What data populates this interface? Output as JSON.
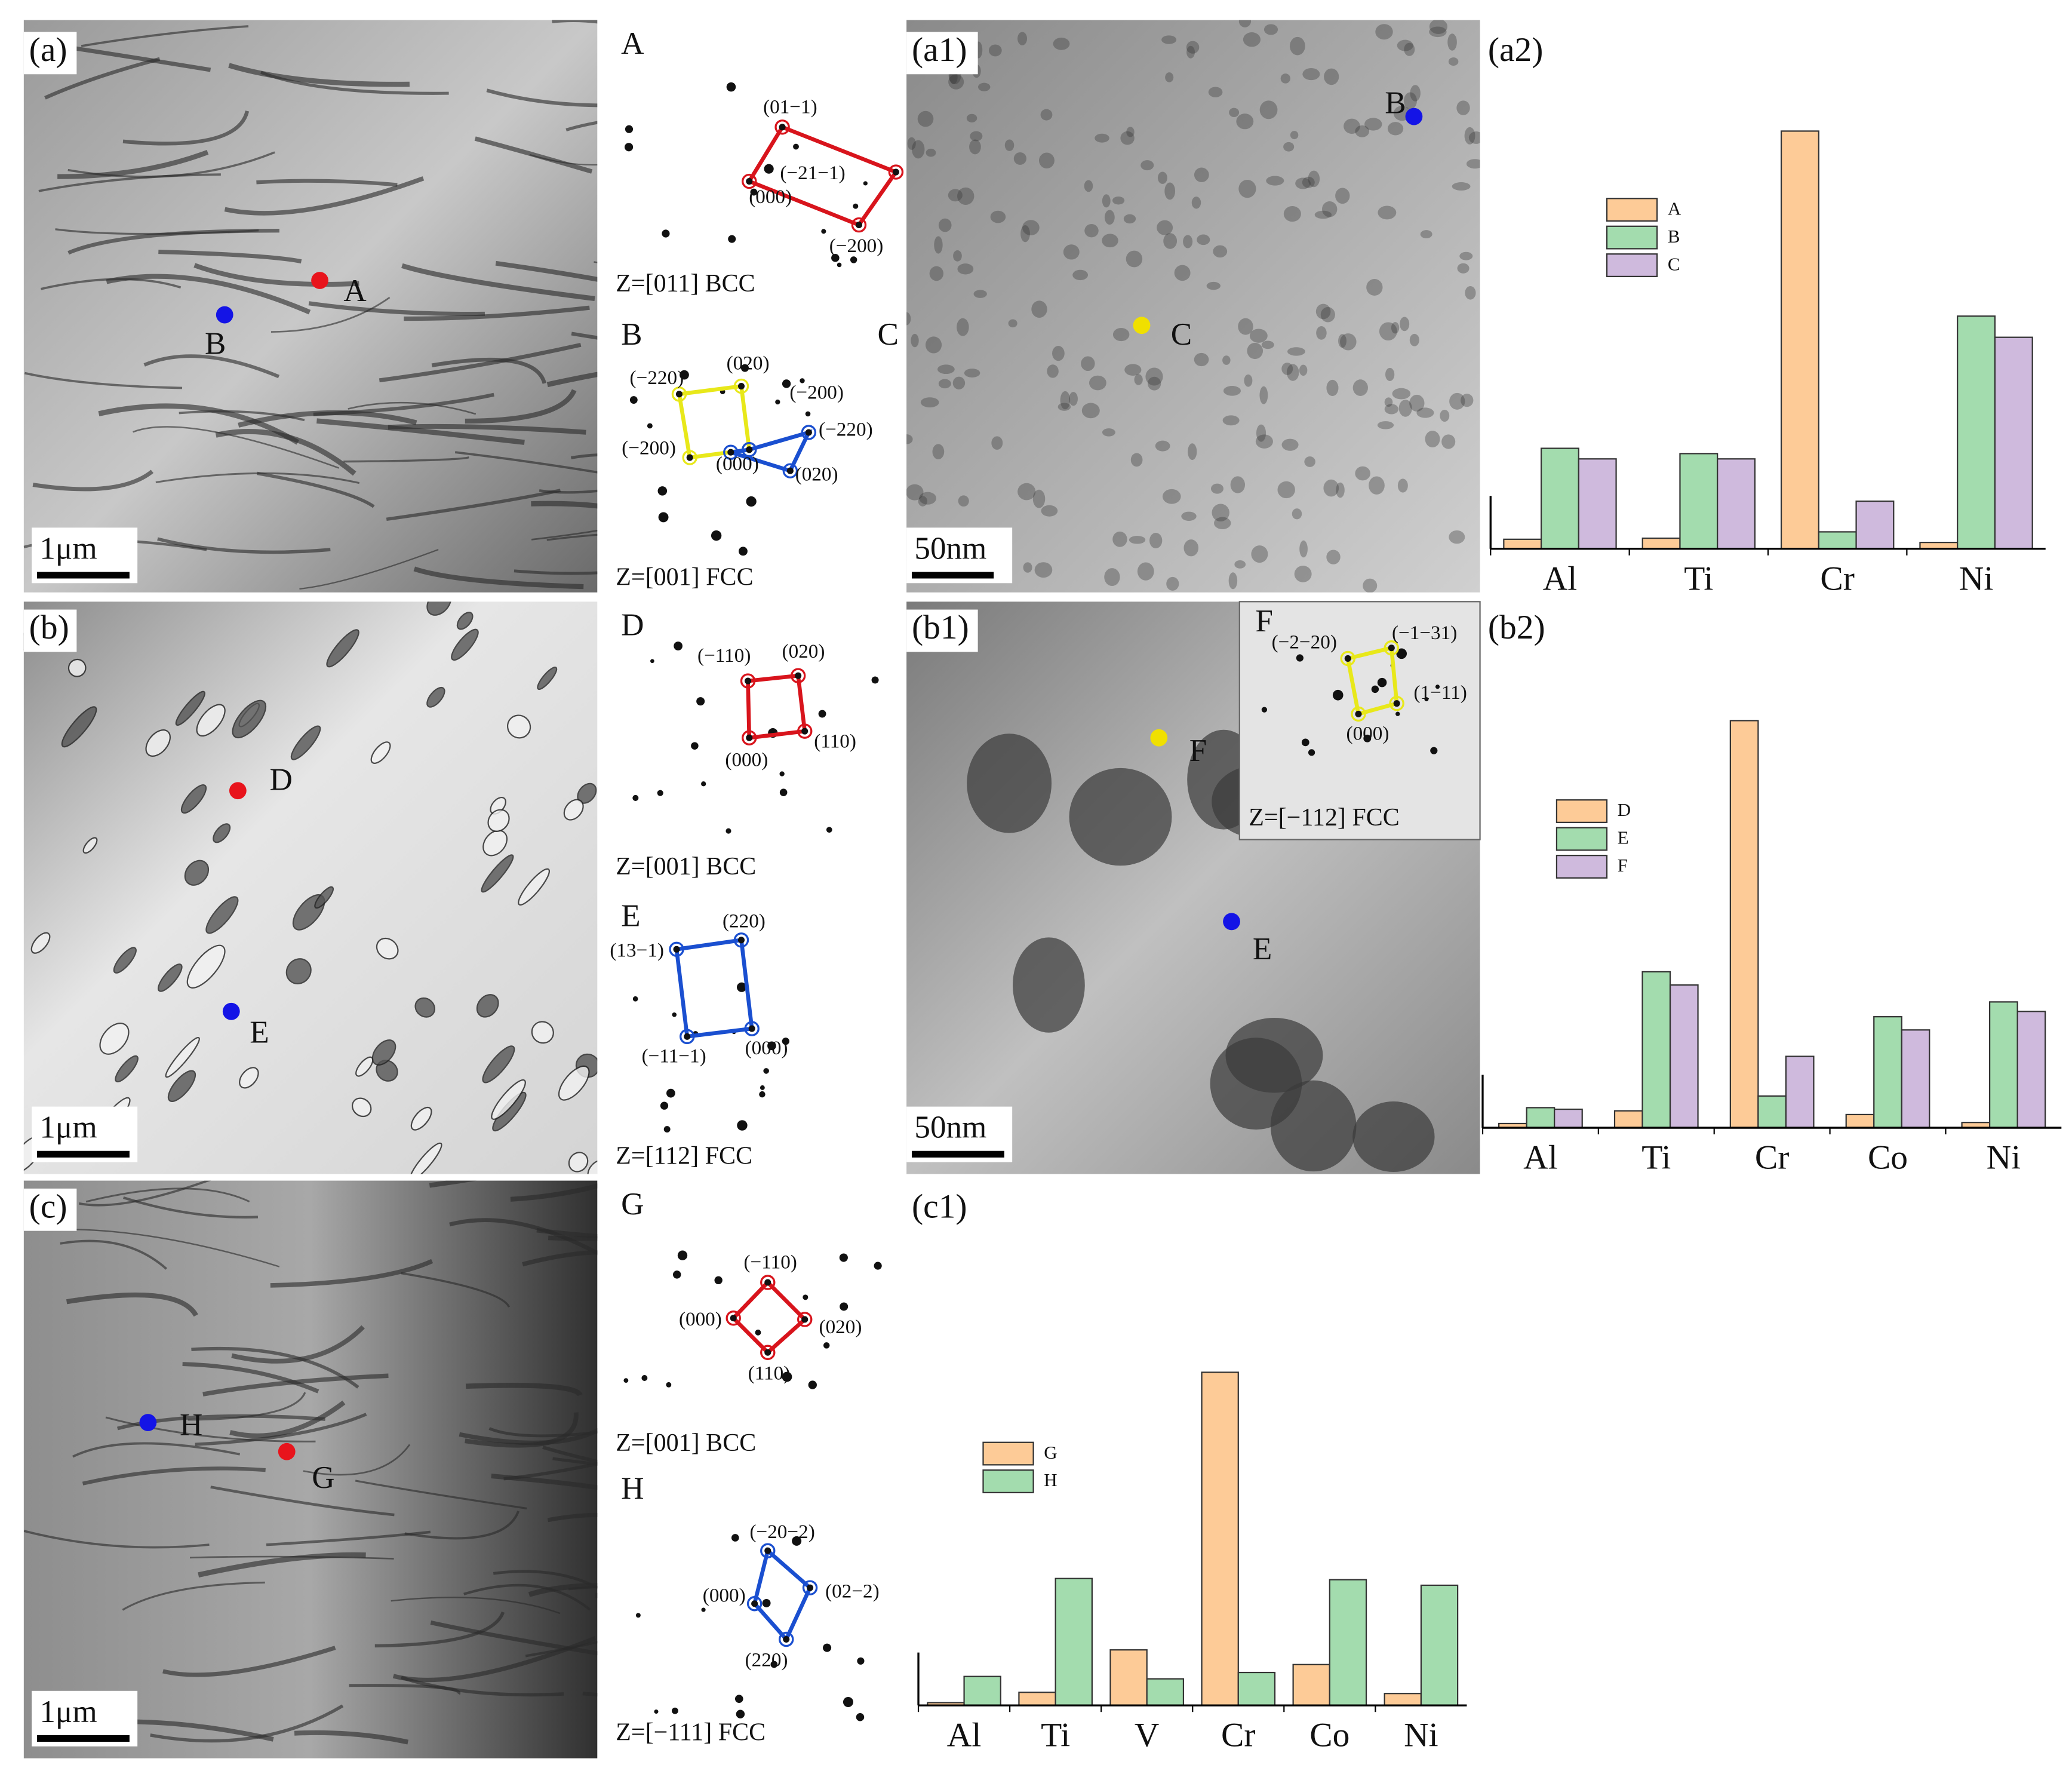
{
  "figure": {
    "micrographs": [
      {
        "label": "(a)",
        "scale_bar": "1μm",
        "points": [
          {
            "label": "A",
            "color": "#e8141c"
          },
          {
            "label": "B",
            "color": "#1414e6"
          }
        ]
      },
      {
        "label": "(a1)",
        "scale_bar": "50nm",
        "points": [
          {
            "label": "B",
            "color": "#1414e6"
          },
          {
            "label": "C",
            "color": "#f0e000"
          }
        ]
      },
      {
        "label": "(b)",
        "scale_bar": "1μm",
        "points": [
          {
            "label": "D",
            "color": "#e8141c"
          },
          {
            "label": "E",
            "color": "#1414e6"
          }
        ]
      },
      {
        "label": "(b1)",
        "scale_bar": "50nm",
        "points": [
          {
            "label": "F",
            "color": "#f0e000"
          },
          {
            "label": "E",
            "color": "#1414e6"
          }
        ]
      },
      {
        "label": "(c)",
        "scale_bar": "1μm",
        "points": [
          {
            "label": "H",
            "color": "#1414e6"
          },
          {
            "label": "G",
            "color": "#e8141c"
          }
        ]
      }
    ],
    "diffraction": [
      {
        "labels": [
          "A"
        ],
        "zone": "Z=[011] BCC",
        "colors": [
          "#d8141c"
        ],
        "spots": [
          "(01−1)",
          "(−21−1)",
          "(000)",
          "(−200)"
        ]
      },
      {
        "labels": [
          "B",
          "C"
        ],
        "zone": "Z=[001] FCC",
        "colors": [
          "#e8e81a",
          "#1a4fd0"
        ],
        "spots": [
          "(−220)",
          "(020)",
          "(−200)",
          "(−200)",
          "(−220)",
          "(000)",
          "(020)"
        ]
      },
      {
        "labels": [
          "D"
        ],
        "zone": "Z=[001] BCC",
        "colors": [
          "#d8141c"
        ],
        "spots": [
          "(−110)",
          "(020)",
          "(000)",
          "(110)"
        ]
      },
      {
        "labels": [
          "E"
        ],
        "zone": "Z=[112] FCC",
        "colors": [
          "#1a4fd0"
        ],
        "spots": [
          "(220)",
          "(13−1)",
          "(−11−1)",
          "(000)"
        ]
      },
      {
        "labels": [
          "F"
        ],
        "zone": "Z=[−112]  FCC",
        "colors": [
          "#e8e81a"
        ],
        "spots": [
          "(−2−20)",
          "(−1−31)",
          "(1−11)",
          "(000)"
        ]
      },
      {
        "labels": [
          "G"
        ],
        "zone": "Z=[001] BCC",
        "colors": [
          "#d8141c"
        ],
        "spots": [
          "(−110)",
          "(000)",
          "(020)",
          "(110)"
        ]
      },
      {
        "labels": [
          "H"
        ],
        "zone": "Z=[−111]  FCC",
        "colors": [
          "#1a4fd0"
        ],
        "spots": [
          "(−20−2)",
          "(000)",
          "(02−2)",
          "(220)"
        ]
      }
    ]
  },
  "chart_data": [
    {
      "type": "bar",
      "label": "(a2)",
      "categories": [
        "Al",
        "Ti",
        "Cr",
        "Ni"
      ],
      "ylim": [
        0,
        100
      ],
      "series": [
        {
          "name": "A",
          "color": "#fdcb97",
          "values": [
            1.8,
            2,
            79,
            1.2
          ]
        },
        {
          "name": "B",
          "color": "#a3dcae",
          "values": [
            19,
            18,
            3.2,
            44
          ]
        },
        {
          "name": "C",
          "color": "#cfbadd",
          "values": [
            17,
            17,
            9,
            40
          ]
        }
      ]
    },
    {
      "type": "bar",
      "label": "(b2)",
      "categories": [
        "Al",
        "Ti",
        "Cr",
        "Co",
        "Ni"
      ],
      "ylim": [
        0,
        100
      ],
      "series": [
        {
          "name": "D",
          "color": "#fdcb97",
          "values": [
            0.8,
            3.2,
            77,
            2.5,
            1
          ]
        },
        {
          "name": "E",
          "color": "#a3dcae",
          "values": [
            3.8,
            29.5,
            6,
            21,
            23.8
          ]
        },
        {
          "name": "F",
          "color": "#cfbadd",
          "values": [
            3.5,
            27,
            13.5,
            18.5,
            22
          ]
        }
      ]
    },
    {
      "type": "bar",
      "label": "(c1)",
      "categories": [
        "Al",
        "Ti",
        "V",
        "Cr",
        "Co",
        "Ni"
      ],
      "ylim": [
        0,
        100
      ],
      "series": [
        {
          "name": "G",
          "color": "#fdcb97",
          "values": [
            0.7,
            3.3,
            14,
            84,
            10.3,
            3
          ]
        },
        {
          "name": "H",
          "color": "#a3dcae",
          "values": [
            7.3,
            32,
            6.7,
            8.3,
            31.7,
            30.3
          ]
        }
      ]
    }
  ]
}
